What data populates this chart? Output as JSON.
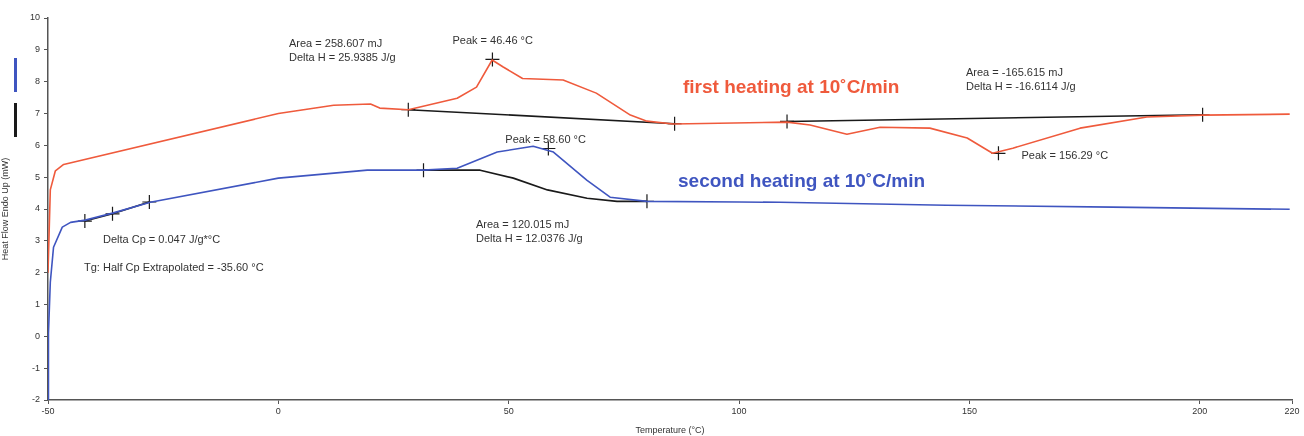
{
  "chart_data": {
    "type": "line",
    "xlabel": "Temperature (°C)",
    "ylabel": "Heat Flow Endo Up (mW)",
    "xlim": [
      -50,
      220
    ],
    "xticks": [
      -50,
      0,
      50,
      100,
      150,
      200,
      220
    ],
    "ylim": [
      -2,
      10
    ],
    "yticks": [
      -2,
      -1,
      0,
      1,
      2,
      3,
      4,
      5,
      6,
      7,
      8,
      9,
      10
    ],
    "grid": false,
    "legend": false,
    "series": [
      {
        "name": "first heating at 10˚C/min",
        "color": "#ef5a3c",
        "x": [
          -50,
          -49.5,
          -48.4,
          -46.6,
          0,
          12,
          20,
          22,
          28.2,
          38.8,
          43,
          46.4,
          48.8,
          53,
          61.8,
          69,
          76.4,
          80,
          85.7,
          110.4,
          115.4,
          123.4,
          130.6,
          141.4,
          149.5,
          155,
          159.4,
          174,
          188.5,
          200.6,
          219.5
        ],
        "values": [
          2.0,
          4.6,
          5.2,
          5.4,
          7.0,
          7.26,
          7.3,
          7.17,
          7.12,
          7.48,
          7.83,
          8.68,
          8.46,
          8.1,
          8.05,
          7.64,
          6.95,
          6.76,
          6.67,
          6.73,
          6.64,
          6.35,
          6.57,
          6.54,
          6.23,
          5.75,
          5.91,
          6.54,
          6.89,
          6.95,
          6.98
        ]
      },
      {
        "name": "second heating at 10˚C/min",
        "color": "#3f55c0",
        "x": [
          -50,
          -49.9,
          -49.5,
          -48.8,
          -46.9,
          -45.1,
          -41.9,
          -36,
          -27.8,
          0,
          19.3,
          31.5,
          38.8,
          47.5,
          55.3,
          59.7,
          67,
          72,
          80,
          100,
          108.9,
          145,
          181,
          219.5
        ],
        "values": [
          -2,
          0.1,
          1.7,
          2.8,
          3.43,
          3.58,
          3.65,
          3.87,
          4.21,
          4.97,
          5.22,
          5.22,
          5.28,
          5.79,
          5.97,
          5.79,
          4.9,
          4.37,
          4.24,
          4.22,
          4.21,
          4.12,
          4.06,
          3.99
        ]
      },
      {
        "color": "#1a1a1a",
        "x": [
          -42,
          -36,
          -28
        ],
        "values": [
          3.62,
          3.85,
          4.22
        ]
      },
      {
        "color": "#1a1a1a",
        "x": [
          28.2,
          86
        ],
        "values": [
          7.12,
          6.68
        ]
      },
      {
        "color": "#1a1a1a",
        "x": [
          31.5,
          43.8,
          51,
          58.4,
          67,
          73.5,
          80
        ],
        "values": [
          5.22,
          5.22,
          4.97,
          4.6,
          4.34,
          4.24,
          4.24
        ]
      },
      {
        "color": "#1a1a1a",
        "x": [
          110.4,
          200.6
        ],
        "values": [
          6.75,
          6.96
        ]
      },
      {
        "type": "scatter",
        "marker": "cross",
        "color": "#1a1a1a",
        "x": [
          -42,
          -36,
          -28,
          28.2,
          46.46,
          86,
          31.5,
          58.6,
          80,
          110.4,
          156.29,
          200.6
        ],
        "values": [
          3.62,
          3.85,
          4.22,
          7.12,
          8.7,
          6.68,
          5.22,
          5.9,
          4.24,
          6.75,
          5.75,
          6.96
        ]
      }
    ],
    "annotations": [
      "Area = 258.607 mJ\nDelta H = 25.9385 J/g",
      {
        "text": "Peak = 46.46 °C",
        "x": 46.46,
        "y": 8.7
      },
      "Area = -165.615 mJ\nDelta H = -16.6114 J/g",
      {
        "text": "Peak = 58.60 °C",
        "x": 58.6,
        "y": 5.9
      },
      {
        "text": "Peak = 156.29 °C",
        "x": 156.29,
        "y": 5.75
      },
      "Area = 120.015 mJ\nDelta H = 12.0376 J/g",
      "Delta Cp = 0.047 J/g*°C",
      "Tg: Half Cp Extrapolated = -35.60 °C"
    ]
  }
}
